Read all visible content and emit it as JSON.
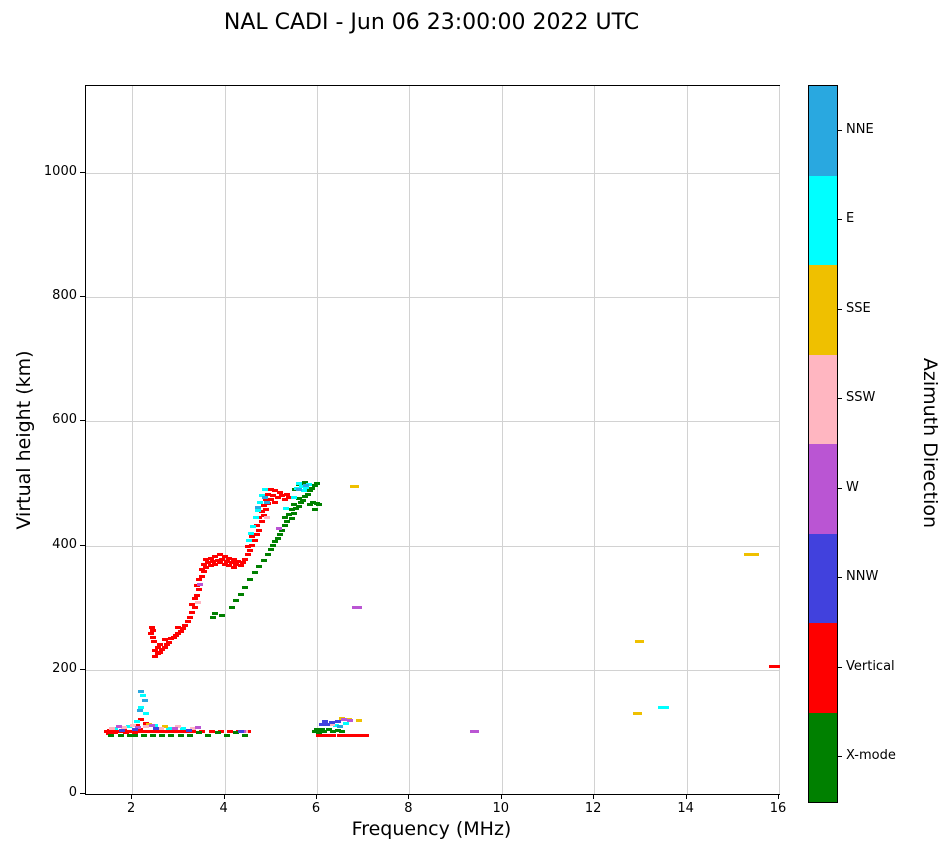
{
  "title": "NAL CADI - Jun 06 23:00:00 2022 UTC",
  "axes": {
    "x_label": "Frequency (MHz)",
    "y_label": "Virtual height (km)",
    "colorbar_label": "Azimuth Direction",
    "x_ticks": [
      2,
      4,
      6,
      8,
      10,
      12,
      14,
      16
    ],
    "y_ticks": [
      0,
      200,
      400,
      600,
      800,
      1000
    ],
    "xlim": [
      1,
      16
    ],
    "ylim": [
      0,
      1140
    ],
    "grid": true
  },
  "legend": [
    {
      "label": "NNE",
      "color": "#29A8E0"
    },
    {
      "label": "E",
      "color": "#00FFFF"
    },
    {
      "label": "SSE",
      "color": "#EFC000"
    },
    {
      "label": "SSW",
      "color": "#FFB6C1"
    },
    {
      "label": "W",
      "color": "#BA55D3"
    },
    {
      "label": "NNW",
      "color": "#4141DD"
    },
    {
      "label": "Vertical",
      "color": "#FE0000"
    },
    {
      "label": "X-mode",
      "color": "#008000"
    }
  ],
  "chart_data": {
    "type": "scatter",
    "title": "NAL CADI - Jun 06 23:00:00 2022 UTC",
    "xlabel": "Frequency (MHz)",
    "ylabel": "Virtual height (km)",
    "legend_title": "Azimuth Direction",
    "legend_position": "right-colorbar",
    "xlim": [
      1,
      16
    ],
    "ylim": [
      0,
      1140
    ],
    "grid": true,
    "series": [
      {
        "name": "Vertical",
        "color": "#FE0000",
        "points": [
          [
            1.45,
            100
          ],
          [
            1.5,
            97
          ],
          [
            1.52,
            103
          ],
          [
            1.57,
            100
          ],
          [
            1.62,
            99
          ],
          [
            1.67,
            101
          ],
          [
            1.72,
            100
          ],
          [
            1.77,
            100
          ],
          [
            1.82,
            102
          ],
          [
            1.87,
            99
          ],
          [
            1.92,
            100
          ],
          [
            1.97,
            101
          ],
          [
            2.02,
            100
          ],
          [
            2.07,
            98
          ],
          [
            2.1,
            110
          ],
          [
            2.12,
            100
          ],
          [
            2.17,
            104
          ],
          [
            2.2,
            120
          ],
          [
            2.22,
            100
          ],
          [
            2.27,
            100
          ],
          [
            2.3,
            113
          ],
          [
            2.32,
            100
          ],
          [
            2.37,
            100
          ],
          [
            2.42,
            100
          ],
          [
            2.47,
            100
          ],
          [
            2.52,
            100
          ],
          [
            2.57,
            100
          ],
          [
            2.62,
            100
          ],
          [
            2.72,
            100
          ],
          [
            2.82,
            100
          ],
          [
            2.92,
            100
          ],
          [
            3.02,
            100
          ],
          [
            3.12,
            100
          ],
          [
            3.22,
            100
          ],
          [
            3.32,
            100
          ],
          [
            3.52,
            100
          ],
          [
            3.72,
            100
          ],
          [
            3.92,
            100
          ],
          [
            4.12,
            100
          ],
          [
            4.32,
            100
          ],
          [
            4.5,
            100
          ],
          [
            6.05,
            95
          ],
          [
            6.15,
            95
          ],
          [
            6.25,
            94
          ],
          [
            6.35,
            95
          ],
          [
            6.5,
            95
          ],
          [
            6.6,
            94
          ],
          [
            6.7,
            95
          ],
          [
            6.8,
            95
          ],
          [
            6.9,
            94
          ],
          [
            7.0,
            95
          ],
          [
            7.05,
            95
          ],
          [
            2.4,
            258
          ],
          [
            2.42,
            268
          ],
          [
            2.45,
            252
          ],
          [
            2.45,
            263
          ],
          [
            2.48,
            245
          ],
          [
            2.5,
            222
          ],
          [
            2.5,
            231
          ],
          [
            2.55,
            226
          ],
          [
            2.55,
            236
          ],
          [
            2.6,
            228
          ],
          [
            2.6,
            240
          ],
          [
            2.65,
            232
          ],
          [
            2.7,
            236
          ],
          [
            2.7,
            248
          ],
          [
            2.75,
            240
          ],
          [
            2.8,
            244
          ],
          [
            2.85,
            250
          ],
          [
            2.9,
            252
          ],
          [
            2.95,
            256
          ],
          [
            3.0,
            258
          ],
          [
            3.0,
            268
          ],
          [
            3.05,
            262
          ],
          [
            3.1,
            266
          ],
          [
            3.15,
            272
          ],
          [
            3.2,
            278
          ],
          [
            3.25,
            285
          ],
          [
            3.3,
            292
          ],
          [
            3.3,
            305
          ],
          [
            3.35,
            300
          ],
          [
            3.35,
            315
          ],
          [
            3.4,
            320
          ],
          [
            3.4,
            335
          ],
          [
            3.45,
            330
          ],
          [
            3.45,
            345
          ],
          [
            3.5,
            350
          ],
          [
            3.5,
            362
          ],
          [
            3.55,
            358
          ],
          [
            3.55,
            370
          ],
          [
            3.6,
            365
          ],
          [
            3.6,
            378
          ],
          [
            3.65,
            372
          ],
          [
            3.7,
            368
          ],
          [
            3.7,
            380
          ],
          [
            3.75,
            375
          ],
          [
            3.8,
            370
          ],
          [
            3.8,
            382
          ],
          [
            3.85,
            376
          ],
          [
            3.9,
            372
          ],
          [
            3.9,
            385
          ],
          [
            3.95,
            378
          ],
          [
            4.0,
            370
          ],
          [
            4.0,
            382
          ],
          [
            4.05,
            375
          ],
          [
            4.1,
            368
          ],
          [
            4.1,
            380
          ],
          [
            4.15,
            372
          ],
          [
            4.2,
            365
          ],
          [
            4.2,
            378
          ],
          [
            4.25,
            370
          ],
          [
            4.3,
            375
          ],
          [
            4.35,
            368
          ],
          [
            4.4,
            372
          ],
          [
            4.45,
            378
          ],
          [
            4.5,
            385
          ],
          [
            4.5,
            398
          ],
          [
            4.55,
            392
          ],
          [
            4.6,
            400
          ],
          [
            4.6,
            415
          ],
          [
            4.65,
            408
          ],
          [
            4.7,
            418
          ],
          [
            4.7,
            432
          ],
          [
            4.75,
            425
          ],
          [
            4.75,
            445
          ],
          [
            4.8,
            438
          ],
          [
            4.8,
            455
          ],
          [
            4.85,
            448
          ],
          [
            4.85,
            465
          ],
          [
            4.9,
            458
          ],
          [
            4.9,
            475
          ],
          [
            4.95,
            468
          ],
          [
            4.95,
            482
          ],
          [
            5.0,
            475
          ],
          [
            5.0,
            490
          ],
          [
            5.05,
            480
          ],
          [
            5.1,
            470
          ],
          [
            5.1,
            488
          ],
          [
            5.15,
            478
          ],
          [
            5.2,
            485
          ],
          [
            5.25,
            480
          ],
          [
            5.3,
            475
          ],
          [
            5.35,
            482
          ],
          [
            5.4,
            478
          ],
          [
            15.85,
            205
          ],
          [
            15.95,
            205
          ]
        ]
      },
      {
        "name": "X-mode",
        "color": "#008000",
        "points": [
          [
            1.55,
            95
          ],
          [
            1.75,
            95
          ],
          [
            1.95,
            95
          ],
          [
            2.05,
            94
          ],
          [
            2.25,
            95
          ],
          [
            2.45,
            94
          ],
          [
            2.65,
            95
          ],
          [
            2.85,
            94
          ],
          [
            3.05,
            95
          ],
          [
            3.25,
            94
          ],
          [
            3.45,
            99
          ],
          [
            3.65,
            95
          ],
          [
            3.85,
            99
          ],
          [
            4.05,
            95
          ],
          [
            4.25,
            99
          ],
          [
            4.45,
            95
          ],
          [
            5.95,
            100
          ],
          [
            6.0,
            104
          ],
          [
            6.05,
            99
          ],
          [
            6.1,
            104
          ],
          [
            6.15,
            100
          ],
          [
            6.25,
            104
          ],
          [
            6.35,
            100
          ],
          [
            6.45,
            103
          ],
          [
            6.55,
            100
          ],
          [
            3.75,
            284
          ],
          [
            3.8,
            290
          ],
          [
            3.95,
            288
          ],
          [
            4.15,
            300
          ],
          [
            4.25,
            312
          ],
          [
            4.35,
            322
          ],
          [
            4.45,
            333
          ],
          [
            4.55,
            345
          ],
          [
            4.65,
            356
          ],
          [
            4.75,
            366
          ],
          [
            4.85,
            376
          ],
          [
            4.95,
            386
          ],
          [
            5.0,
            394
          ],
          [
            5.05,
            400
          ],
          [
            5.1,
            406
          ],
          [
            5.15,
            412
          ],
          [
            5.2,
            418
          ],
          [
            5.25,
            424
          ],
          [
            5.3,
            432
          ],
          [
            5.3,
            445
          ],
          [
            5.35,
            438
          ],
          [
            5.4,
            450
          ],
          [
            5.45,
            443
          ],
          [
            5.45,
            458
          ],
          [
            5.5,
            452
          ],
          [
            5.5,
            466
          ],
          [
            5.55,
            459
          ],
          [
            5.6,
            463
          ],
          [
            5.6,
            476
          ],
          [
            5.65,
            469
          ],
          [
            5.7,
            473
          ],
          [
            5.75,
            479
          ],
          [
            5.8,
            483
          ],
          [
            5.85,
            488
          ],
          [
            5.9,
            492
          ],
          [
            5.95,
            496
          ],
          [
            6.0,
            500
          ],
          [
            5.7,
            496
          ],
          [
            5.75,
            501
          ],
          [
            5.62,
            498
          ],
          [
            5.52,
            490
          ],
          [
            5.85,
            466
          ],
          [
            5.92,
            470
          ],
          [
            6.0,
            468
          ],
          [
            6.05,
            466
          ],
          [
            5.95,
            458
          ]
        ]
      },
      {
        "name": "E",
        "color": "#00FFFF",
        "points": [
          [
            1.62,
            105
          ],
          [
            1.92,
            108
          ],
          [
            2.1,
            116
          ],
          [
            2.2,
            140
          ],
          [
            2.24,
            158
          ],
          [
            2.3,
            130
          ],
          [
            2.5,
            110
          ],
          [
            2.8,
            106
          ],
          [
            3.1,
            105
          ],
          [
            6.42,
            110
          ],
          [
            6.62,
            114
          ],
          [
            4.52,
            408
          ],
          [
            4.57,
            420
          ],
          [
            4.62,
            430
          ],
          [
            4.67,
            445
          ],
          [
            4.72,
            456
          ],
          [
            4.77,
            470
          ],
          [
            4.82,
            480
          ],
          [
            4.87,
            490
          ],
          [
            5.32,
            460
          ],
          [
            5.5,
            478
          ],
          [
            5.57,
            492
          ],
          [
            5.62,
            500
          ],
          [
            5.67,
            495
          ],
          [
            5.72,
            488
          ],
          [
            5.77,
            493
          ],
          [
            5.82,
            498
          ],
          [
            13.45,
            140
          ],
          [
            13.55,
            140
          ]
        ]
      },
      {
        "name": "NNE",
        "color": "#29A8E0",
        "points": [
          [
            2.2,
            165
          ],
          [
            2.28,
            150
          ],
          [
            2.16,
            134
          ],
          [
            6.5,
            109
          ],
          [
            4.72,
            462
          ],
          [
            4.87,
            478
          ],
          [
            4.92,
            470
          ],
          [
            5.62,
            490
          ],
          [
            5.77,
            497
          ]
        ]
      },
      {
        "name": "SSE",
        "color": "#EFC000",
        "points": [
          [
            2.36,
            112
          ],
          [
            2.7,
            108
          ],
          [
            6.55,
            121
          ],
          [
            6.7,
            120
          ],
          [
            6.9,
            119
          ],
          [
            6.78,
            495
          ],
          [
            6.85,
            495
          ],
          [
            12.9,
            130
          ],
          [
            12.98,
            130
          ],
          [
            12.95,
            245
          ],
          [
            13.02,
            245
          ],
          [
            15.3,
            385
          ],
          [
            15.4,
            385
          ],
          [
            15.5,
            385
          ]
        ]
      },
      {
        "name": "SSW",
        "color": "#FFB6C1",
        "points": [
          [
            1.57,
            105
          ],
          [
            1.82,
            107
          ],
          [
            2.02,
            110
          ],
          [
            2.3,
            108
          ],
          [
            2.62,
            105
          ],
          [
            3.0,
            108
          ],
          [
            3.32,
            105
          ],
          [
            4.45,
            100
          ],
          [
            6.32,
            112
          ],
          [
            3.42,
            308
          ],
          [
            4.92,
            445
          ]
        ]
      },
      {
        "name": "W",
        "color": "#BA55D3",
        "points": [
          [
            1.72,
            108
          ],
          [
            2.12,
            107
          ],
          [
            2.42,
            110
          ],
          [
            2.92,
            105
          ],
          [
            3.42,
            107
          ],
          [
            4.4,
            100
          ],
          [
            6.58,
            120
          ],
          [
            6.72,
            118
          ],
          [
            9.38,
            100
          ],
          [
            9.45,
            100
          ],
          [
            6.82,
            300
          ],
          [
            6.9,
            300
          ],
          [
            3.47,
            338
          ],
          [
            5.17,
            428
          ]
        ]
      },
      {
        "name": "NNW",
        "color": "#4141DD",
        "points": [
          [
            1.77,
            103
          ],
          [
            2.07,
            104
          ],
          [
            2.52,
            106
          ],
          [
            3.22,
            103
          ],
          [
            6.18,
            117
          ],
          [
            6.32,
            115
          ],
          [
            6.45,
            117
          ],
          [
            6.1,
            112
          ],
          [
            6.22,
            112
          ],
          [
            4.35,
            100
          ]
        ]
      }
    ]
  }
}
